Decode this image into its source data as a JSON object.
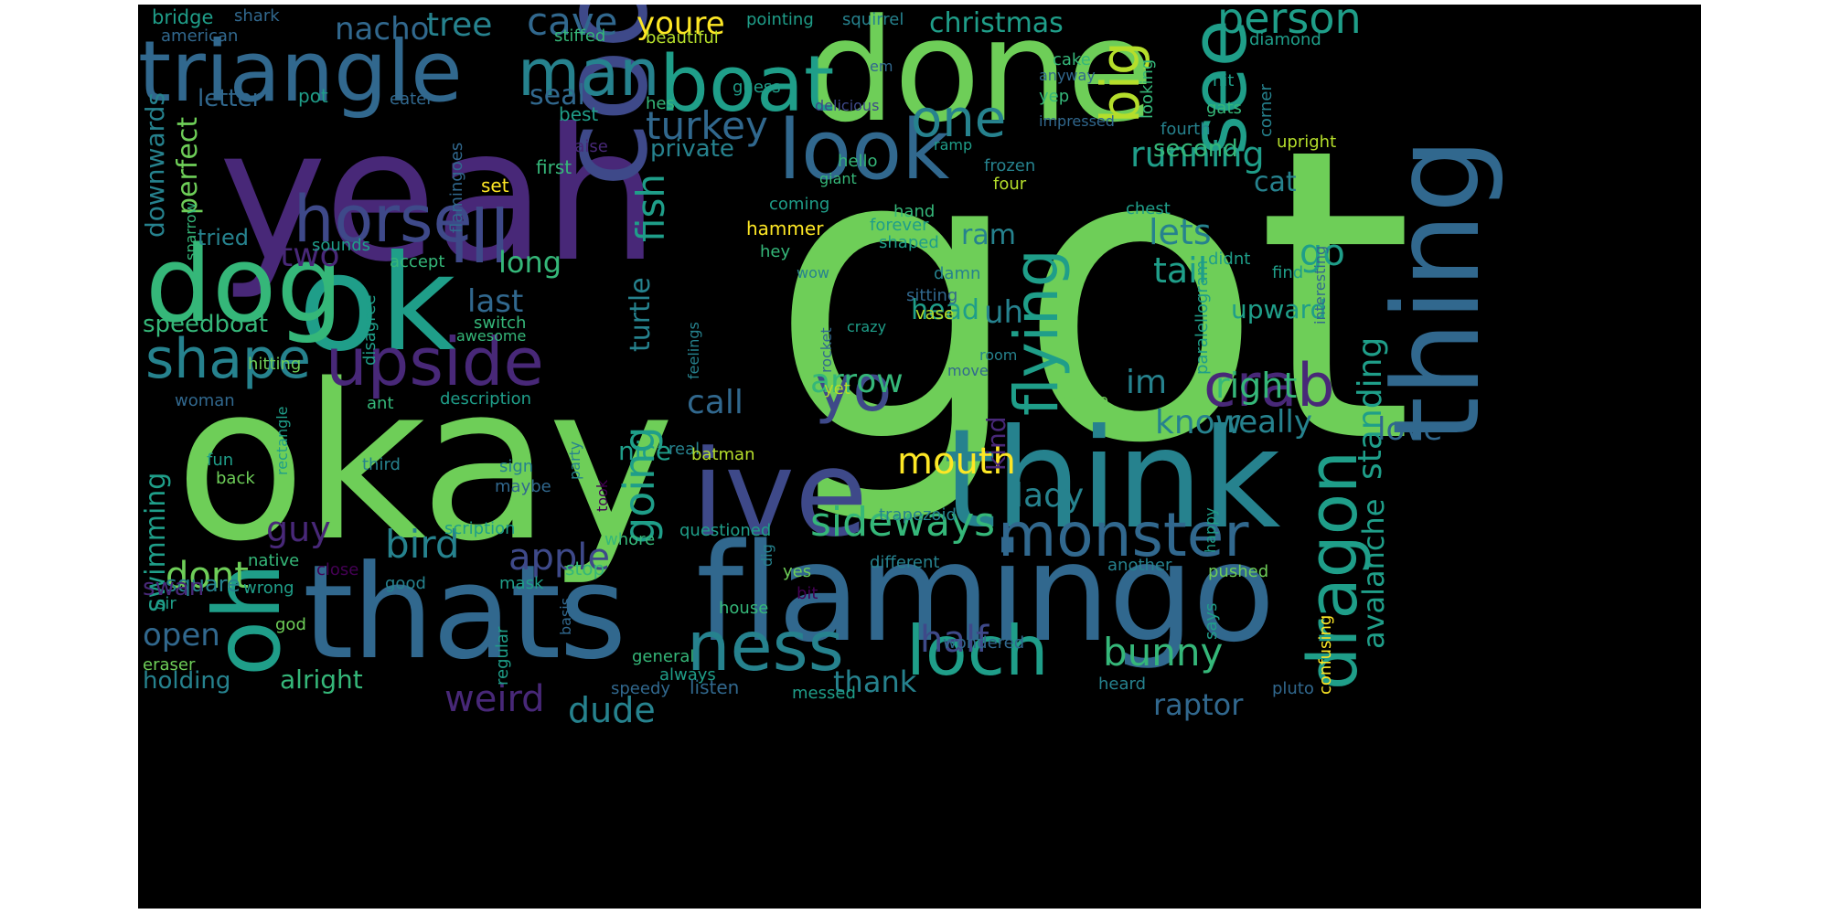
{
  "palette": {
    "background": "#ffffff",
    "canvas": "#000000",
    "tones": [
      "#440154",
      "#482878",
      "#3e4989",
      "#31688e",
      "#26828e",
      "#1f9e89",
      "#35b779",
      "#6ece58",
      "#b5de2b",
      "#fde725"
    ]
  },
  "words": [
    {
      "text": "got",
      "tone": 7
    },
    {
      "text": "okay",
      "tone": 7
    },
    {
      "text": "yeah",
      "tone": 1
    },
    {
      "text": "done",
      "tone": 7
    },
    {
      "text": "think",
      "tone": 4
    },
    {
      "text": "flamingo",
      "tone": 3
    },
    {
      "text": "thats",
      "tone": 3
    },
    {
      "text": "ive",
      "tone": 2
    },
    {
      "text": "cool",
      "tone": 2
    },
    {
      "text": "ok",
      "tone": 5
    },
    {
      "text": "thing",
      "tone": 3
    },
    {
      "text": "triangle",
      "tone": 3
    },
    {
      "text": "dog",
      "tone": 6
    },
    {
      "text": "oh",
      "tone": 5
    },
    {
      "text": "boat",
      "tone": 5
    },
    {
      "text": "look",
      "tone": 3
    },
    {
      "text": "see",
      "tone": 5
    },
    {
      "text": "man",
      "tone": 4
    },
    {
      "text": "horse",
      "tone": 2
    },
    {
      "text": "ill",
      "tone": 2
    },
    {
      "text": "upside",
      "tone": 1
    },
    {
      "text": "shape",
      "tone": 4
    },
    {
      "text": "monster",
      "tone": 3
    },
    {
      "text": "dragon",
      "tone": 5
    },
    {
      "text": "ness",
      "tone": 4
    },
    {
      "text": "loch",
      "tone": 5
    },
    {
      "text": "flying",
      "tone": 5
    },
    {
      "text": "crab",
      "tone": 1
    },
    {
      "text": "yo",
      "tone": 2
    },
    {
      "text": "one",
      "tone": 4
    },
    {
      "text": "big",
      "tone": 8
    },
    {
      "text": "person",
      "tone": 5
    },
    {
      "text": "turkey",
      "tone": 3
    },
    {
      "text": "fish",
      "tone": 5
    },
    {
      "text": "turtle",
      "tone": 4
    },
    {
      "text": "going",
      "tone": 5
    },
    {
      "text": "sideways",
      "tone": 6
    },
    {
      "text": "bird",
      "tone": 4
    },
    {
      "text": "apple",
      "tone": 2
    },
    {
      "text": "guy",
      "tone": 1
    },
    {
      "text": "dont",
      "tone": 7
    },
    {
      "text": "weird",
      "tone": 1
    },
    {
      "text": "dude",
      "tone": 4
    },
    {
      "text": "half",
      "tone": 2
    },
    {
      "text": "bunny",
      "tone": 6
    },
    {
      "text": "raptor",
      "tone": 3
    },
    {
      "text": "mouth",
      "tone": 9
    },
    {
      "text": "arrow",
      "tone": 6
    },
    {
      "text": "call",
      "tone": 3
    },
    {
      "text": "lady",
      "tone": 4
    },
    {
      "text": "right",
      "tone": 6
    },
    {
      "text": "know",
      "tone": 4
    },
    {
      "text": "im",
      "tone": 4
    },
    {
      "text": "uh",
      "tone": 4
    },
    {
      "text": "ram",
      "tone": 4
    },
    {
      "text": "head",
      "tone": 5
    },
    {
      "text": "tail",
      "tone": 5
    },
    {
      "text": "lets",
      "tone": 4
    },
    {
      "text": "go",
      "tone": 5
    },
    {
      "text": "running",
      "tone": 5
    },
    {
      "text": "standing",
      "tone": 5
    },
    {
      "text": "avalanche",
      "tone": 5
    },
    {
      "text": "really",
      "tone": 4
    },
    {
      "text": "love",
      "tone": 3
    },
    {
      "text": "two",
      "tone": 1
    },
    {
      "text": "long",
      "tone": 6
    },
    {
      "text": "last",
      "tone": 3
    },
    {
      "text": "nacho",
      "tone": 3
    },
    {
      "text": "tree",
      "tone": 4
    },
    {
      "text": "cave",
      "tone": 3
    },
    {
      "text": "youre",
      "tone": 9
    },
    {
      "text": "christmas",
      "tone": 5
    },
    {
      "text": "seal",
      "tone": 3
    },
    {
      "text": "private",
      "tone": 4
    },
    {
      "text": "perfect",
      "tone": 7
    },
    {
      "text": "letter",
      "tone": 3
    },
    {
      "text": "downwards",
      "tone": 4
    },
    {
      "text": "speedboat",
      "tone": 6
    },
    {
      "text": "open",
      "tone": 3
    },
    {
      "text": "holding",
      "tone": 4
    },
    {
      "text": "alright",
      "tone": 6
    },
    {
      "text": "swimming",
      "tone": 5
    },
    {
      "text": "thank",
      "tone": 4
    },
    {
      "text": "nice",
      "tone": 5
    },
    {
      "text": "upward",
      "tone": 5
    },
    {
      "text": "second",
      "tone": 6
    },
    {
      "text": "cat",
      "tone": 4
    },
    {
      "text": "kind",
      "tone": 1
    },
    {
      "text": "square",
      "tone": 4
    },
    {
      "text": "swan",
      "tone": 1
    },
    {
      "text": "tried",
      "tone": 4
    },
    {
      "text": "bridge",
      "tone": 5
    },
    {
      "text": "shark",
      "tone": 3
    },
    {
      "text": "american",
      "tone": 3
    },
    {
      "text": "pot",
      "tone": 5
    },
    {
      "text": "eater",
      "tone": 3
    },
    {
      "text": "flamingoes",
      "tone": 3
    },
    {
      "text": "best",
      "tone": 5
    },
    {
      "text": "raise",
      "tone": 1
    },
    {
      "text": "first",
      "tone": 6
    },
    {
      "text": "set",
      "tone": 9
    },
    {
      "text": "stiffed",
      "tone": 6
    },
    {
      "text": "pointing",
      "tone": 5
    },
    {
      "text": "beautiful",
      "tone": 8
    },
    {
      "text": "squirrel",
      "tone": 4
    },
    {
      "text": "diamond",
      "tone": 5
    },
    {
      "text": "em",
      "tone": 3
    },
    {
      "text": "cake",
      "tone": 6
    },
    {
      "text": "anyway",
      "tone": 3
    },
    {
      "text": "hit",
      "tone": 5
    },
    {
      "text": "yep",
      "tone": 6
    },
    {
      "text": "impressed",
      "tone": 3
    },
    {
      "text": "corner",
      "tone": 4
    },
    {
      "text": "fourth",
      "tone": 4
    },
    {
      "text": "gats",
      "tone": 6
    },
    {
      "text": "upright",
      "tone": 8
    },
    {
      "text": "looking",
      "tone": 6
    },
    {
      "text": "delicious",
      "tone": 2
    },
    {
      "text": "hes",
      "tone": 6
    },
    {
      "text": "guess",
      "tone": 5
    },
    {
      "text": "hello",
      "tone": 6
    },
    {
      "text": "ramp",
      "tone": 5
    },
    {
      "text": "frozen",
      "tone": 4
    },
    {
      "text": "giant",
      "tone": 6
    },
    {
      "text": "four",
      "tone": 8
    },
    {
      "text": "coming",
      "tone": 5
    },
    {
      "text": "hand",
      "tone": 6
    },
    {
      "text": "chest",
      "tone": 5
    },
    {
      "text": "hammer",
      "tone": 9
    },
    {
      "text": "forever",
      "tone": 5
    },
    {
      "text": "shaped",
      "tone": 5
    },
    {
      "text": "hey",
      "tone": 6
    },
    {
      "text": "wow",
      "tone": 4
    },
    {
      "text": "interesting",
      "tone": 3
    },
    {
      "text": "didnt",
      "tone": 5
    },
    {
      "text": "find",
      "tone": 5
    },
    {
      "text": "damn",
      "tone": 4
    },
    {
      "text": "sitting",
      "tone": 3
    },
    {
      "text": "vase",
      "tone": 8
    },
    {
      "text": "paralellogram",
      "tone": 5
    },
    {
      "text": "rocket",
      "tone": 3
    },
    {
      "text": "crazy",
      "tone": 5
    },
    {
      "text": "room",
      "tone": 4
    },
    {
      "text": "move",
      "tone": 3
    },
    {
      "text": "yet",
      "tone": 8
    },
    {
      "text": "name",
      "tone": 7
    },
    {
      "text": "sounds",
      "tone": 5
    },
    {
      "text": "accept",
      "tone": 6
    },
    {
      "text": "disagree",
      "tone": 5
    },
    {
      "text": "switch",
      "tone": 6
    },
    {
      "text": "awesome",
      "tone": 6
    },
    {
      "text": "hitting",
      "tone": 7
    },
    {
      "text": "feelings",
      "tone": 4
    },
    {
      "text": "woman",
      "tone": 3
    },
    {
      "text": "rectangle",
      "tone": 5
    },
    {
      "text": "ant",
      "tone": 6
    },
    {
      "text": "description",
      "tone": 5
    },
    {
      "text": "sparrow",
      "tone": 6
    },
    {
      "text": "fun",
      "tone": 5
    },
    {
      "text": "back",
      "tone": 7
    },
    {
      "text": "third",
      "tone": 4
    },
    {
      "text": "sign",
      "tone": 4
    },
    {
      "text": "maybe",
      "tone": 3
    },
    {
      "text": "real",
      "tone": 4
    },
    {
      "text": "batman",
      "tone": 8
    },
    {
      "text": "party",
      "tone": 4
    },
    {
      "text": "took",
      "tone": 0
    },
    {
      "text": "trapezoid",
      "tone": 4
    },
    {
      "text": "scription",
      "tone": 5
    },
    {
      "text": "questioned",
      "tone": 5
    },
    {
      "text": "whore",
      "tone": 6
    },
    {
      "text": "native",
      "tone": 6
    },
    {
      "text": "close",
      "tone": 0
    },
    {
      "text": "stop",
      "tone": 6
    },
    {
      "text": "mask",
      "tone": 5
    },
    {
      "text": "different",
      "tone": 4
    },
    {
      "text": "yes",
      "tone": 7
    },
    {
      "text": "wrong",
      "tone": 5
    },
    {
      "text": "good",
      "tone": 4
    },
    {
      "text": "dig",
      "tone": 4
    },
    {
      "text": "bit",
      "tone": 0
    },
    {
      "text": "sir",
      "tone": 5
    },
    {
      "text": "house",
      "tone": 6
    },
    {
      "text": "another",
      "tone": 4
    },
    {
      "text": "pushed",
      "tone": 7
    },
    {
      "text": "happy",
      "tone": 5
    },
    {
      "text": "says",
      "tone": 5
    },
    {
      "text": "confusing",
      "tone": 9
    },
    {
      "text": "god",
      "tone": 7
    },
    {
      "text": "basis",
      "tone": 3
    },
    {
      "text": "regular",
      "tone": 5
    },
    {
      "text": "general",
      "tone": 6
    },
    {
      "text": "eraser",
      "tone": 7
    },
    {
      "text": "always",
      "tone": 5
    },
    {
      "text": "speedy",
      "tone": 3
    },
    {
      "text": "listen",
      "tone": 3
    },
    {
      "text": "messed",
      "tone": 5
    },
    {
      "text": "wondered",
      "tone": 3
    },
    {
      "text": "heard",
      "tone": 4
    },
    {
      "text": "pluto",
      "tone": 3
    }
  ]
}
